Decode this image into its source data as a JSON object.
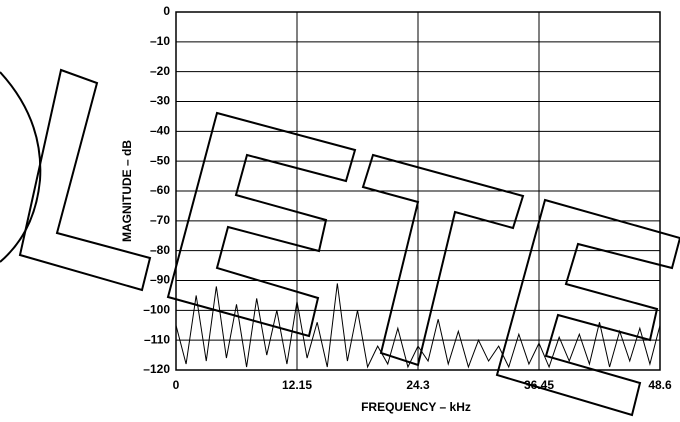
{
  "chart_data": {
    "type": "line",
    "xlabel": "FREQUENCY – kHz",
    "ylabel": "MAGNITUDE – dB",
    "x": [
      0,
      1.0125,
      2.025,
      3.0375,
      4.05,
      5.0625,
      6.075,
      7.0875,
      8.1,
      9.1125,
      10.125,
      11.1375,
      12.15,
      13.1625,
      14.175,
      15.1875,
      16.2,
      17.2125,
      18.225,
      19.2375,
      20.25,
      21.2625,
      22.275,
      23.2875,
      24.3,
      25.3125,
      26.325,
      27.3375,
      28.35,
      29.3625,
      30.375,
      31.3875,
      32.4,
      33.4125,
      34.425,
      35.4375,
      36.45,
      37.4625,
      38.475,
      39.4875,
      40.5,
      41.5125,
      42.525,
      43.5375,
      44.55,
      45.5625,
      46.575,
      47.5875,
      48.6
    ],
    "values": [
      -105,
      -118,
      -95,
      -117,
      -92,
      -116,
      -98,
      -119,
      -96,
      -115,
      -100,
      -118,
      -97,
      -116,
      -104,
      -119,
      -91,
      -117,
      -100,
      -119,
      -112,
      -118,
      -106,
      -119,
      -112,
      -117,
      -103,
      -118,
      -107,
      -119,
      -110,
      -117,
      -112,
      -119,
      -108,
      -118,
      -111,
      -119,
      -109,
      -117,
      -108,
      -118,
      -104,
      -119,
      -107,
      -117,
      -106,
      -118,
      -105
    ],
    "color": "#000000",
    "xlim": [
      0,
      48.6
    ],
    "xticks": [
      0,
      12.15,
      24.3,
      36.45,
      48.6
    ],
    "ylim": [
      -120,
      0
    ],
    "yticks": [
      0,
      {
        "value": -10,
        "label": "–10"
      },
      {
        "value": -20,
        "label": "–20"
      },
      {
        "value": -30,
        "label": "–30"
      },
      {
        "value": -40,
        "label": "–40"
      },
      {
        "value": -50,
        "label": "–50"
      },
      {
        "value": -60,
        "label": "–60"
      },
      {
        "value": -70,
        "label": "–70"
      },
      {
        "value": -80,
        "label": "–80"
      },
      {
        "value": -90,
        "label": "–90"
      },
      {
        "value": -100,
        "label": "–100"
      },
      {
        "value": -110,
        "label": "–110"
      },
      {
        "value": -120,
        "label": "–120"
      }
    ],
    "grid": true
  }
}
